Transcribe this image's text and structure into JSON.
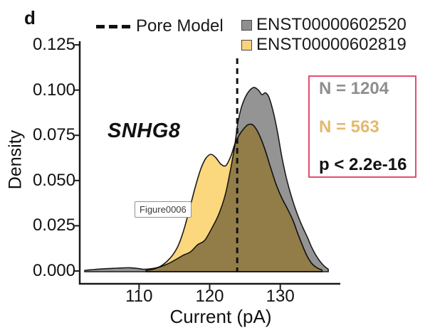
{
  "panel_label": "d",
  "legend": {
    "pore_model_label": "Pore Model",
    "series": [
      {
        "label": "ENST00000602520",
        "color": "#8f8f8f"
      },
      {
        "label": "ENST00000602819",
        "color": "#f7d37c"
      }
    ]
  },
  "gene_label": "SNHG8",
  "watermark": "Figure0006",
  "stats_box": {
    "border_color": "#e34e70",
    "items": [
      {
        "text": "N = 1204",
        "color": "#8e8e8e"
      },
      {
        "text": "N = 563",
        "color": "#e2ba6d"
      },
      {
        "text": "p < 2.2e-16",
        "color": "#111111"
      }
    ]
  },
  "chart_data": {
    "type": "area",
    "title": "",
    "xlabel": "Current (pA)",
    "ylabel": "Density",
    "x_ticks": [
      110,
      120,
      130
    ],
    "y_ticks": [
      0.0,
      0.025,
      0.05,
      0.075,
      0.1,
      0.125
    ],
    "xlim": [
      101.7,
      138.5
    ],
    "ylim": [
      0,
      0.127
    ],
    "grid": false,
    "legend_position": "top",
    "pore_model_x": 123.9,
    "pore_model_style": "dashed-vertical-line",
    "series": [
      {
        "name": "ENST00000602520",
        "fill": "#949494",
        "stroke": "#1b1b1b",
        "points": [
          [
            102.3,
            0.0003
          ],
          [
            103.5,
            0.0008
          ],
          [
            105,
            0.0012
          ],
          [
            106.5,
            0.0015
          ],
          [
            107.6,
            0.0017
          ],
          [
            108.6,
            0.0018
          ],
          [
            109.6,
            0.0015
          ],
          [
            110.6,
            0.001
          ],
          [
            111.6,
            0.0012
          ],
          [
            112.5,
            0.0018
          ],
          [
            113.5,
            0.003
          ],
          [
            114.5,
            0.0048
          ],
          [
            115.5,
            0.007
          ],
          [
            116.3,
            0.0088
          ],
          [
            117.3,
            0.0106
          ],
          [
            118.3,
            0.0145
          ],
          [
            119.3,
            0.017
          ],
          [
            120.3,
            0.0236
          ],
          [
            121.3,
            0.0315
          ],
          [
            122.2,
            0.042
          ],
          [
            122.9,
            0.055
          ],
          [
            123.5,
            0.068
          ],
          [
            124,
            0.082
          ],
          [
            124.5,
            0.0905
          ],
          [
            125.1,
            0.0965
          ],
          [
            125.7,
            0.1
          ],
          [
            126.3,
            0.1015
          ],
          [
            126.9,
            0.1
          ],
          [
            127.4,
            0.0975
          ],
          [
            127.9,
            0.0985
          ],
          [
            128.4,
            0.096
          ],
          [
            129,
            0.088
          ],
          [
            129.6,
            0.077
          ],
          [
            130.2,
            0.0635
          ],
          [
            130.8,
            0.0525
          ],
          [
            131.4,
            0.0435
          ],
          [
            132,
            0.036
          ],
          [
            132.6,
            0.0295
          ],
          [
            133.2,
            0.024
          ],
          [
            133.8,
            0.019
          ],
          [
            134.4,
            0.0135
          ],
          [
            135,
            0.009
          ],
          [
            135.6,
            0.0055
          ],
          [
            136.2,
            0.0028
          ],
          [
            136.8,
            0.001
          ]
        ]
      },
      {
        "name": "ENST00000602819",
        "fill": "#fbd77e",
        "stroke": "#1b1b1b",
        "blend": "multiply",
        "points": [
          [
            111,
            0.0003
          ],
          [
            112,
            0.001
          ],
          [
            113,
            0.0025
          ],
          [
            114,
            0.0055
          ],
          [
            114.8,
            0.009
          ],
          [
            115.6,
            0.0145
          ],
          [
            116.4,
            0.0235
          ],
          [
            117.2,
            0.035
          ],
          [
            118,
            0.047
          ],
          [
            118.8,
            0.057
          ],
          [
            119.5,
            0.0625
          ],
          [
            120.2,
            0.0645
          ],
          [
            120.9,
            0.0625
          ],
          [
            121.6,
            0.059
          ],
          [
            122.3,
            0.0583
          ],
          [
            123,
            0.0635
          ],
          [
            123.6,
            0.0705
          ],
          [
            124.2,
            0.0752
          ],
          [
            124.9,
            0.079
          ],
          [
            125.5,
            0.081
          ],
          [
            126.2,
            0.0805
          ],
          [
            127,
            0.0755
          ],
          [
            127.8,
            0.0675
          ],
          [
            128.6,
            0.0575
          ],
          [
            129.4,
            0.048
          ],
          [
            130.2,
            0.0405
          ],
          [
            131,
            0.0345
          ],
          [
            131.8,
            0.028
          ],
          [
            132.4,
            0.0215
          ],
          [
            133,
            0.0155
          ],
          [
            133.7,
            0.009
          ],
          [
            134.4,
            0.0045
          ],
          [
            135.1,
            0.002
          ],
          [
            135.9,
            0.0005
          ]
        ]
      }
    ]
  }
}
